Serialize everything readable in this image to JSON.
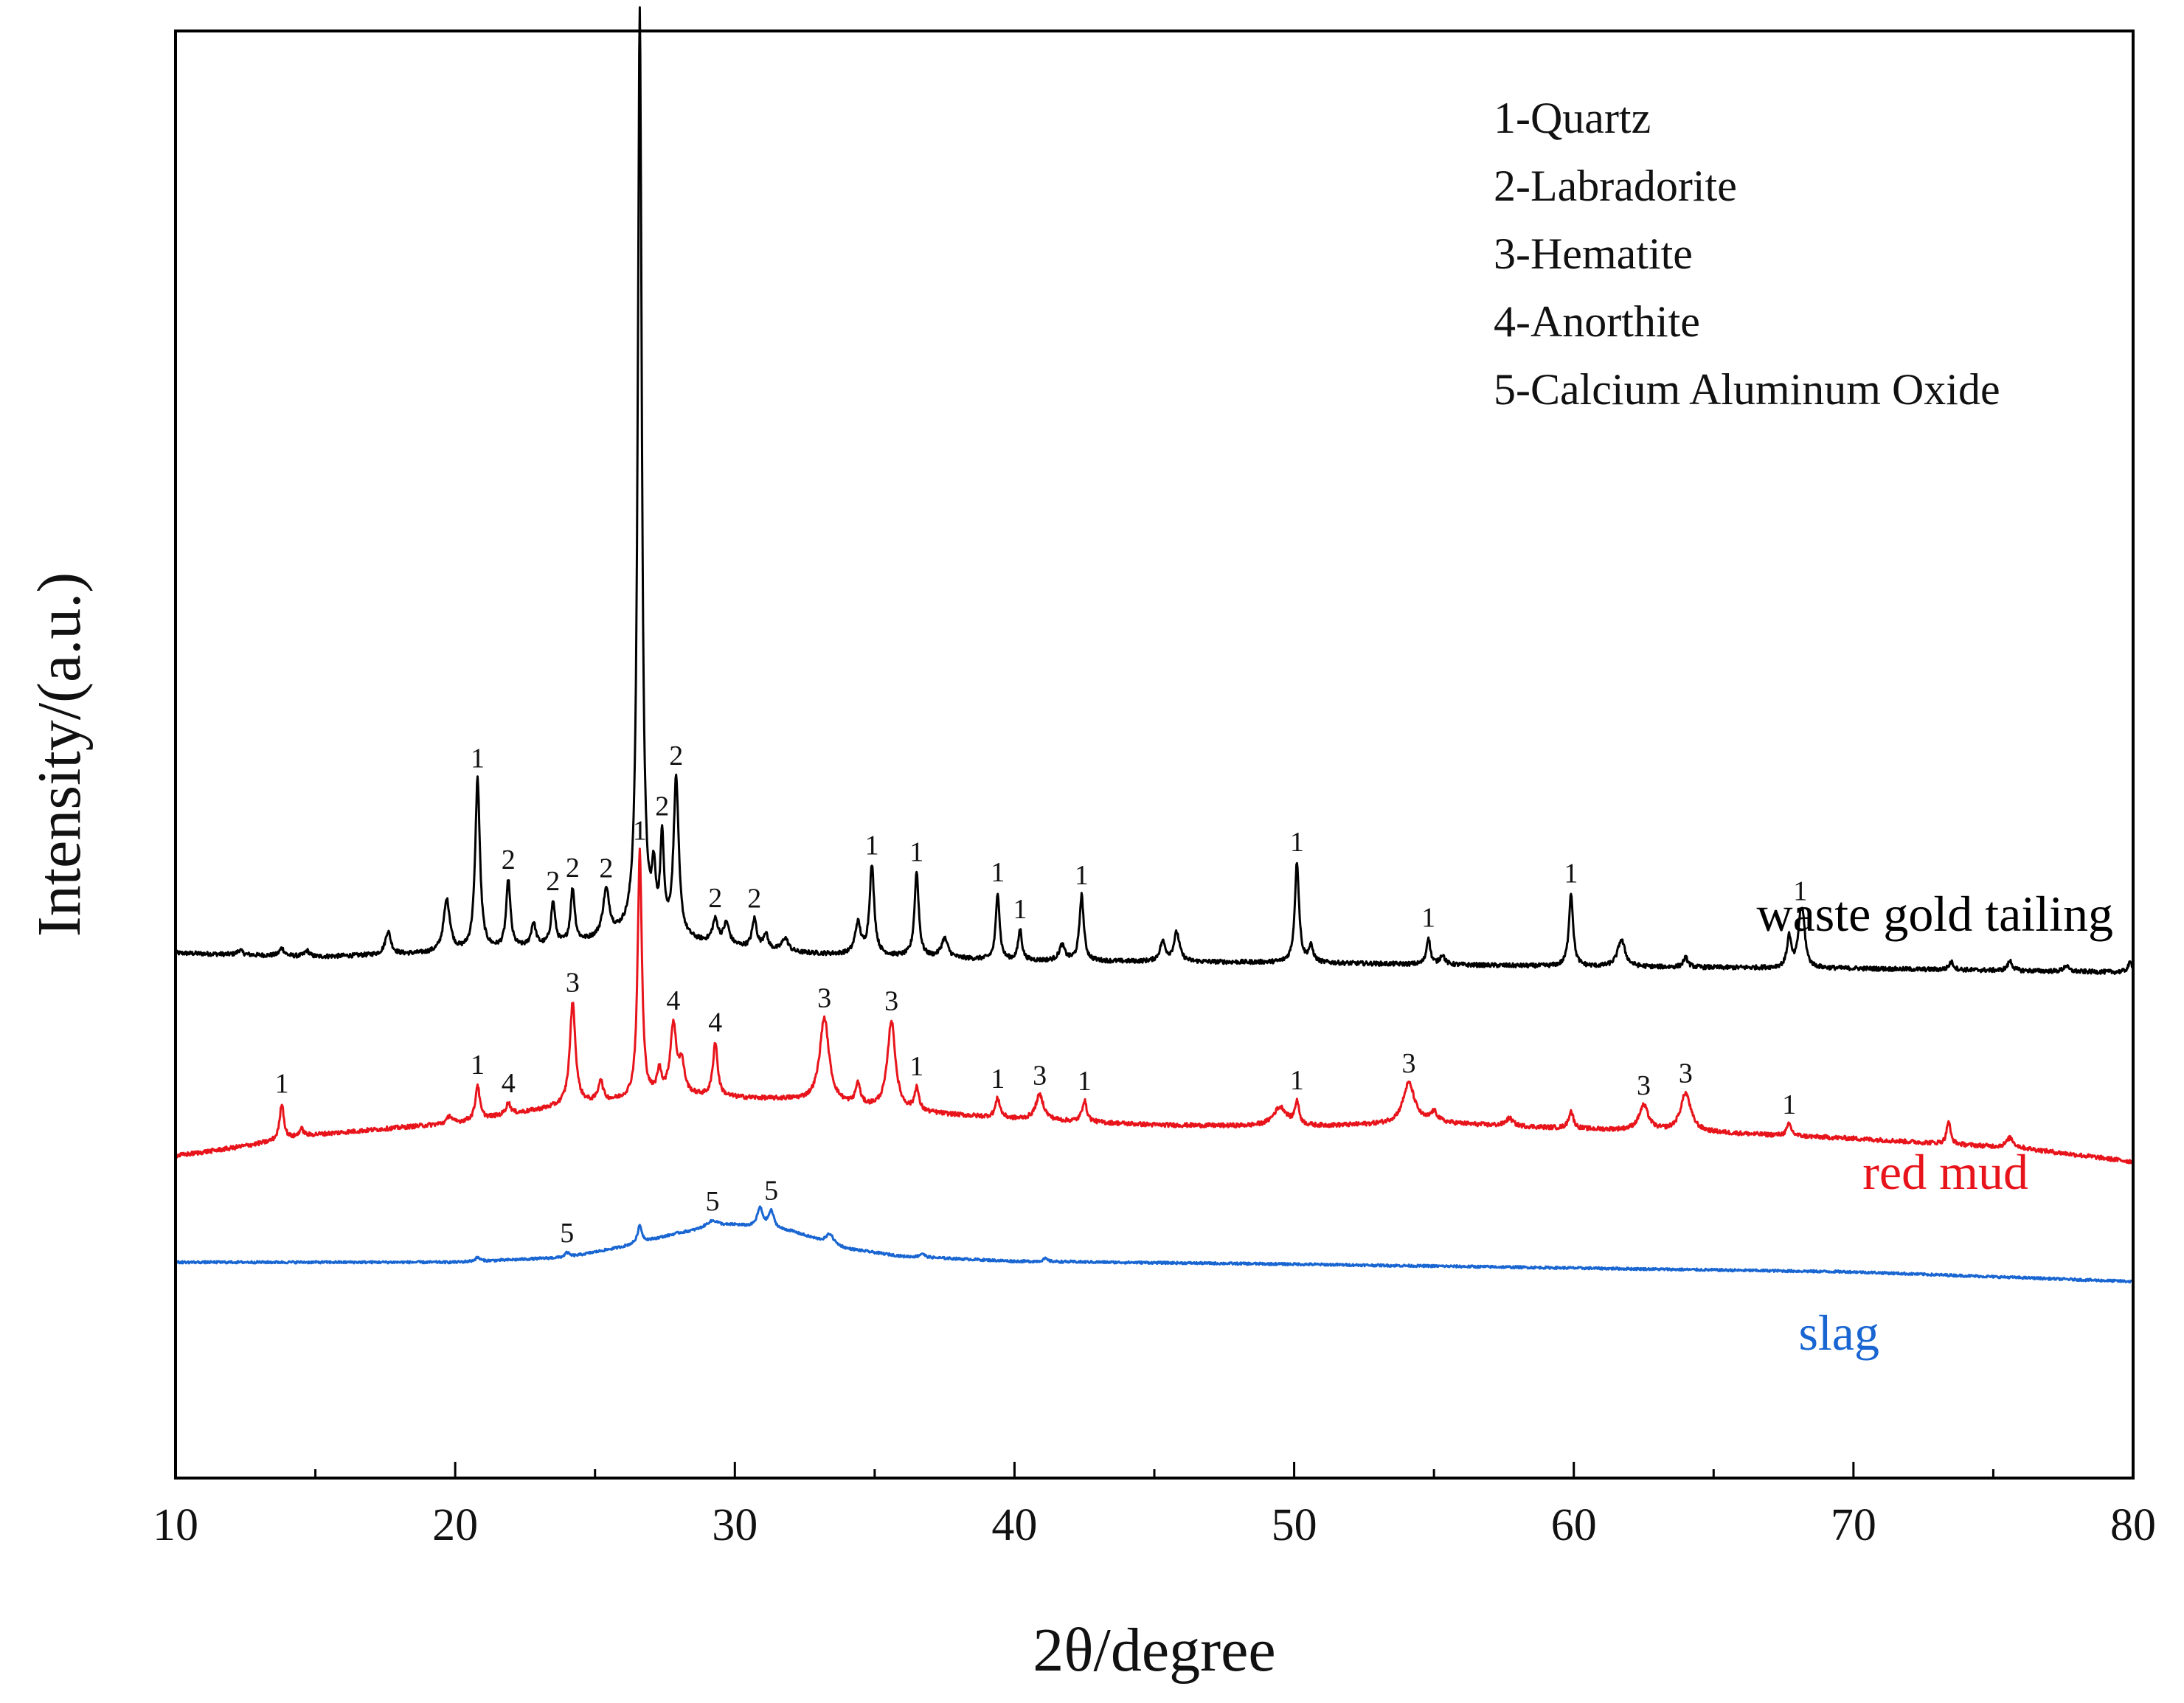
{
  "chart_data": {
    "type": "line",
    "title": "",
    "xlabel": "2θ/degree",
    "ylabel": "Intensity/(a.u.)",
    "xlim": [
      10,
      80
    ],
    "xticks": [
      10,
      20,
      30,
      40,
      50,
      60,
      70,
      80
    ],
    "y_ticks_shown": false,
    "grid": false,
    "legend": {
      "placement": "top-right",
      "entries": [
        "1-Quartz",
        "2-Labradorite",
        "3-Hematite",
        "4-Anorthite",
        "5-Calcium Aluminum Oxide"
      ]
    },
    "series": [
      {
        "name": "waste gold tailing",
        "color": "#000000",
        "offset": 20.1,
        "baseline": [
          [
            10,
            1.0
          ],
          [
            15,
            0.8
          ],
          [
            20,
            1.0
          ],
          [
            24,
            1.4
          ],
          [
            26,
            1.8
          ],
          [
            28,
            1.6
          ],
          [
            32,
            1.0
          ],
          [
            40,
            0.6
          ],
          [
            50,
            0.5
          ],
          [
            60,
            0.3
          ],
          [
            70,
            0.2
          ],
          [
            80,
            0.0
          ]
        ],
        "peaks": [
          {
            "x": 12.3,
            "h": 0.25,
            "w": 0.1
          },
          {
            "x": 13.8,
            "h": 0.4,
            "w": 0.1
          },
          {
            "x": 14.7,
            "h": 0.3,
            "w": 0.1
          },
          {
            "x": 17.6,
            "h": 1.2,
            "w": 0.12
          },
          {
            "x": 19.7,
            "h": 2.7,
            "w": 0.14
          },
          {
            "x": 20.8,
            "h": 8.9,
            "w": 0.1,
            "label": "1"
          },
          {
            "x": 21.9,
            "h": 3.5,
            "w": 0.09,
            "label": "2"
          },
          {
            "x": 22.8,
            "h": 1.2,
            "w": 0.1
          },
          {
            "x": 23.5,
            "h": 2.2,
            "w": 0.09,
            "label": "2"
          },
          {
            "x": 24.2,
            "h": 2.8,
            "w": 0.09,
            "label": "2"
          },
          {
            "x": 25.4,
            "h": 2.4,
            "w": 0.14,
            "label": "2"
          },
          {
            "x": 26.6,
            "h": 48.0,
            "w": 0.085,
            "label": "1"
          },
          {
            "x": 27.1,
            "h": 2.8,
            "w": 0.08
          },
          {
            "x": 27.4,
            "h": 4.8,
            "w": 0.08,
            "label": "2"
          },
          {
            "x": 27.9,
            "h": 8.2,
            "w": 0.11,
            "label": "2"
          },
          {
            "x": 29.3,
            "h": 1.2,
            "w": 0.12,
            "label": "2"
          },
          {
            "x": 29.7,
            "h": 1.1,
            "w": 0.12
          },
          {
            "x": 30.7,
            "h": 1.5,
            "w": 0.1,
            "label": "2"
          },
          {
            "x": 31.1,
            "h": 0.8,
            "w": 0.1
          },
          {
            "x": 31.8,
            "h": 0.7,
            "w": 0.14
          },
          {
            "x": 34.4,
            "h": 1.6,
            "w": 0.12
          },
          {
            "x": 34.9,
            "h": 4.6,
            "w": 0.1,
            "label": "1"
          },
          {
            "x": 36.5,
            "h": 4.4,
            "w": 0.09,
            "label": "1"
          },
          {
            "x": 37.5,
            "h": 1.0,
            "w": 0.14
          },
          {
            "x": 39.4,
            "h": 3.5,
            "w": 0.08,
            "label": "1"
          },
          {
            "x": 40.2,
            "h": 1.6,
            "w": 0.08,
            "label": "1"
          },
          {
            "x": 41.7,
            "h": 0.8,
            "w": 0.12
          },
          {
            "x": 42.4,
            "h": 3.4,
            "w": 0.09,
            "label": "1"
          },
          {
            "x": 45.3,
            "h": 1.0,
            "w": 0.12
          },
          {
            "x": 45.8,
            "h": 1.5,
            "w": 0.12
          },
          {
            "x": 50.1,
            "h": 5.2,
            "w": 0.09,
            "label": "1"
          },
          {
            "x": 50.6,
            "h": 0.8,
            "w": 0.1
          },
          {
            "x": 54.8,
            "h": 1.4,
            "w": 0.08,
            "label": "1"
          },
          {
            "x": 55.3,
            "h": 0.5,
            "w": 0.1
          },
          {
            "x": 59.9,
            "h": 3.8,
            "w": 0.09,
            "label": "1"
          },
          {
            "x": 61.7,
            "h": 1.4,
            "w": 0.16
          },
          {
            "x": 64.0,
            "h": 0.5,
            "w": 0.1
          },
          {
            "x": 67.7,
            "h": 1.6,
            "w": 0.09
          },
          {
            "x": 68.1,
            "h": 2.0,
            "w": 0.1,
            "label": "1"
          },
          {
            "x": 68.2,
            "h": 1.8,
            "w": 0.1
          },
          {
            "x": 73.5,
            "h": 0.4,
            "w": 0.1
          },
          {
            "x": 75.6,
            "h": 0.5,
            "w": 0.1
          },
          {
            "x": 77.6,
            "h": 0.3,
            "w": 0.1
          },
          {
            "x": 79.9,
            "h": 0.5,
            "w": 0.1
          }
        ]
      },
      {
        "name": "red mud",
        "color": "#e8141b",
        "offset": 10.6,
        "baseline": [
          [
            10,
            0.0
          ],
          [
            12,
            0.4
          ],
          [
            15,
            1.1
          ],
          [
            20,
            1.7
          ],
          [
            24,
            2.6
          ],
          [
            28,
            3.1
          ],
          [
            32,
            2.9
          ],
          [
            36,
            2.3
          ],
          [
            40,
            1.9
          ],
          [
            45,
            1.6
          ],
          [
            50,
            1.5
          ],
          [
            55,
            1.7
          ],
          [
            60,
            1.4
          ],
          [
            65,
            1.2
          ],
          [
            70,
            0.9
          ],
          [
            76,
            0.4
          ],
          [
            80,
            -0.3
          ]
        ],
        "peaks": [
          {
            "x": 13.8,
            "h": 1.9,
            "w": 0.09,
            "label": "1"
          },
          {
            "x": 14.5,
            "h": 0.4,
            "w": 0.1
          },
          {
            "x": 19.8,
            "h": 0.4,
            "w": 0.1
          },
          {
            "x": 20.8,
            "h": 1.8,
            "w": 0.09,
            "label": "1"
          },
          {
            "x": 21.9,
            "h": 0.6,
            "w": 0.1,
            "label": "4"
          },
          {
            "x": 24.2,
            "h": 5.3,
            "w": 0.12,
            "label": "3"
          },
          {
            "x": 25.2,
            "h": 1.1,
            "w": 0.1
          },
          {
            "x": 26.6,
            "h": 12.8,
            "w": 0.09,
            "label": "1"
          },
          {
            "x": 27.3,
            "h": 1.2,
            "w": 0.1
          },
          {
            "x": 27.8,
            "h": 3.6,
            "w": 0.13,
            "label": "4"
          },
          {
            "x": 28.1,
            "h": 1.5,
            "w": 0.12
          },
          {
            "x": 29.3,
            "h": 2.8,
            "w": 0.1,
            "label": "4"
          },
          {
            "x": 33.2,
            "h": 4.4,
            "w": 0.2,
            "label": "3"
          },
          {
            "x": 34.4,
            "h": 1.1,
            "w": 0.1
          },
          {
            "x": 35.6,
            "h": 4.6,
            "w": 0.17,
            "label": "3"
          },
          {
            "x": 36.5,
            "h": 1.2,
            "w": 0.09,
            "label": "1"
          },
          {
            "x": 39.4,
            "h": 1.0,
            "w": 0.1,
            "label": "1"
          },
          {
            "x": 40.9,
            "h": 1.3,
            "w": 0.17,
            "label": "3"
          },
          {
            "x": 42.5,
            "h": 1.1,
            "w": 0.1,
            "label": "1"
          },
          {
            "x": 49.5,
            "h": 1.0,
            "w": 0.3
          },
          {
            "x": 50.1,
            "h": 1.2,
            "w": 0.09,
            "label": "1"
          },
          {
            "x": 54.1,
            "h": 2.1,
            "w": 0.25,
            "label": "3"
          },
          {
            "x": 55.0,
            "h": 0.5,
            "w": 0.15
          },
          {
            "x": 57.7,
            "h": 0.4,
            "w": 0.15
          },
          {
            "x": 59.9,
            "h": 0.9,
            "w": 0.1
          },
          {
            "x": 62.5,
            "h": 1.3,
            "w": 0.2,
            "label": "3"
          },
          {
            "x": 64.0,
            "h": 2.0,
            "w": 0.22,
            "label": "3"
          },
          {
            "x": 67.7,
            "h": 0.6,
            "w": 0.1,
            "label": "1"
          },
          {
            "x": 73.4,
            "h": 1.2,
            "w": 0.08
          },
          {
            "x": 75.6,
            "h": 0.5,
            "w": 0.15
          }
        ]
      },
      {
        "name": "slag",
        "color": "#1966d2",
        "offset": 5.1,
        "baseline": [
          [
            10,
            0.0
          ],
          [
            15,
            0.0
          ],
          [
            20,
            0.0
          ],
          [
            24,
            0.25
          ],
          [
            26,
            0.8
          ],
          [
            28,
            1.5
          ],
          [
            30,
            1.9
          ],
          [
            32,
            1.6
          ],
          [
            34,
            0.7
          ],
          [
            36,
            0.3
          ],
          [
            40,
            0.05
          ],
          [
            50,
            -0.1
          ],
          [
            60,
            -0.3
          ],
          [
            70,
            -0.5
          ],
          [
            80,
            -1.0
          ]
        ],
        "peaks": [
          {
            "x": 20.8,
            "h": 0.2,
            "w": 0.1
          },
          {
            "x": 24.0,
            "h": 0.25,
            "w": 0.1,
            "label": "5"
          },
          {
            "x": 26.6,
            "h": 0.9,
            "w": 0.09
          },
          {
            "x": 29.2,
            "h": 0.4,
            "w": 0.3,
            "label": "5"
          },
          {
            "x": 30.9,
            "h": 1.0,
            "w": 0.12
          },
          {
            "x": 31.3,
            "h": 0.9,
            "w": 0.12,
            "label": "5"
          },
          {
            "x": 33.4,
            "h": 0.5,
            "w": 0.15
          },
          {
            "x": 36.7,
            "h": 0.2,
            "w": 0.1
          },
          {
            "x": 41.1,
            "h": 0.15,
            "w": 0.1
          }
        ]
      }
    ]
  }
}
